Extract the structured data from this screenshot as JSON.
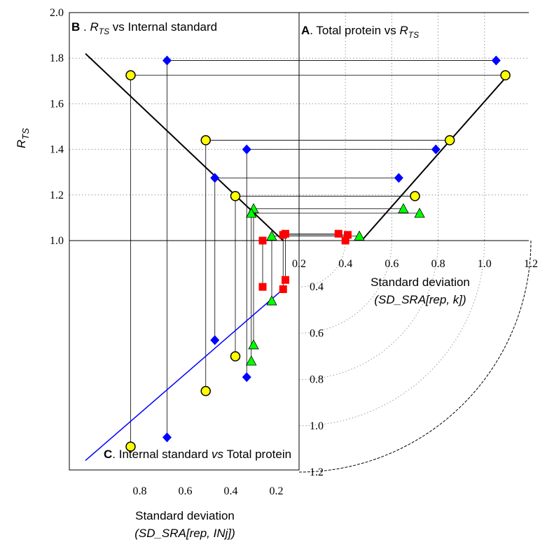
{
  "chart_data": {
    "type": "scatter",
    "panels": {
      "A": {
        "letter": "A",
        "title": ". Total protein vs ",
        "var": "R",
        "var_sub": "TS",
        "xlabel_line1": "Standard deviation",
        "xlabel_line2": "(SD_SRA[rep, k])",
        "x_ticks": [
          "0.2",
          "0.4",
          "0.6",
          "0.8",
          "1.0",
          "1.2"
        ],
        "x_range": [
          0.2,
          1.2
        ]
      },
      "B": {
        "letter": "B",
        "title_var": "R",
        "title_sub": "TS",
        "title_rest": " vs  Internal standard",
        "xlabel_line1": "Standard deviation",
        "xlabel_line2": "(SD_SRA[rep, INj])",
        "x_ticks": [
          "0.8",
          "0.6",
          "0.4",
          "0.2"
        ],
        "x_range": [
          0.95,
          0.1
        ]
      },
      "C": {
        "letter": "C",
        "title_a": ". Internal standard ",
        "title_vs": "vs",
        "title_b": " Total protein",
        "y_ticks": [
          "0.4",
          "0.6",
          "0.8",
          "1.0",
          "1.2"
        ]
      }
    },
    "ylabel": {
      "main": "R",
      "sub": "TS"
    },
    "y_ticks": [
      "1.0",
      "1.2",
      "1.4",
      "1.6",
      "1.8",
      "2.0"
    ],
    "ylim": [
      1.0,
      2.0
    ],
    "grid": true,
    "series": [
      {
        "marker": "circle",
        "color": "#ffff00",
        "stroke": "#000000",
        "points": [
          {
            "y": 1.725,
            "a": 1.09,
            "b": 0.84,
            "c": 1.09
          },
          {
            "y": 1.44,
            "a": 0.85,
            "b": 0.51,
            "c": 0.85
          },
          {
            "y": 1.195,
            "a": 0.7,
            "b": 0.38,
            "c": 0.7
          }
        ]
      },
      {
        "marker": "diamond",
        "color": "#0000ff",
        "stroke": "#000000",
        "points": [
          {
            "y": 1.79,
            "a": 1.05,
            "b": 0.68,
            "c": 1.05
          },
          {
            "y": 1.4,
            "a": 0.79,
            "b": 0.33,
            "c": 0.79
          },
          {
            "y": 1.275,
            "a": 0.63,
            "b": 0.47,
            "c": 0.63
          }
        ]
      },
      {
        "marker": "triangle",
        "color": "#00ff00",
        "stroke": "#000000",
        "points": [
          {
            "y": 1.14,
            "a": 0.65,
            "b": 0.3,
            "c": 0.65
          },
          {
            "y": 1.12,
            "a": 0.72,
            "b": 0.31,
            "c": 0.72
          },
          {
            "y": 1.02,
            "a": 0.46,
            "b": 0.22,
            "c": 0.46
          }
        ]
      },
      {
        "marker": "square",
        "color": "#ff0000",
        "stroke": "#ff0000",
        "points": [
          {
            "y": 1.03,
            "a": 0.37,
            "b": 0.16,
            "c": 0.37
          },
          {
            "y": 1.025,
            "a": 0.41,
            "b": 0.17,
            "c": 0.41
          },
          {
            "y": 1.0,
            "a": 0.4,
            "b": 0.26,
            "c": 0.4
          }
        ]
      }
    ]
  }
}
